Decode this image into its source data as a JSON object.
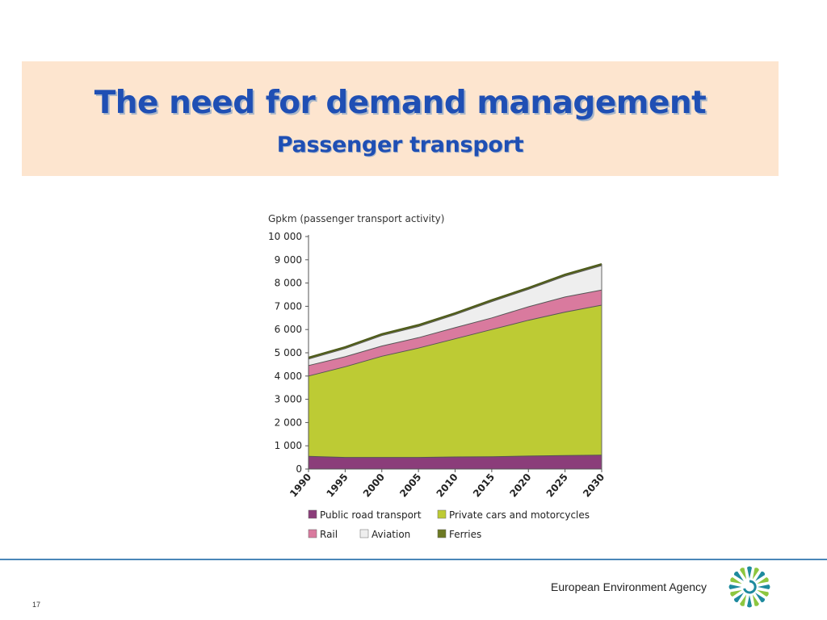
{
  "header": {
    "title": "The need for demand management",
    "subtitle": "Passenger transport"
  },
  "chart_data": {
    "type": "area",
    "stacked": true,
    "ylabel": "Gpkm (passenger transport activity)",
    "ylim": [
      0,
      10000
    ],
    "yticks": [
      "0",
      "1 000",
      "2 000",
      "3 000",
      "4 000",
      "5 000",
      "6 000",
      "7 000",
      "8 000",
      "9 000",
      "10 000"
    ],
    "x": [
      "1990",
      "1995",
      "2000",
      "2005",
      "2010",
      "2015",
      "2020",
      "2025",
      "2030"
    ],
    "series": [
      {
        "name": "Public road transport",
        "color": "#8b3d7a",
        "values": [
          550,
          500,
          500,
          500,
          520,
          530,
          560,
          580,
          600
        ]
      },
      {
        "name": "Private cars and motorcycles",
        "color": "#bdcb34",
        "values": [
          3450,
          3900,
          4350,
          4700,
          5080,
          5470,
          5840,
          6170,
          6450
        ]
      },
      {
        "name": "Rail",
        "color": "#d97a9e",
        "values": [
          450,
          430,
          440,
          450,
          480,
          500,
          580,
          650,
          650
        ]
      },
      {
        "name": "Aviation",
        "color": "#eeeeee",
        "values": [
          280,
          350,
          450,
          480,
          560,
          700,
          750,
          900,
          1050
        ]
      },
      {
        "name": "Ferries",
        "color": "#6d7a23",
        "values": [
          70,
          70,
          70,
          70,
          70,
          70,
          70,
          70,
          70
        ]
      }
    ],
    "legend_position": "bottom",
    "grid": false
  },
  "footer": {
    "page_number": "17",
    "agency_name": "European Environment Agency"
  },
  "logo": {
    "icon": "eea-logo-icon",
    "colors": [
      "#1e8a9e",
      "#8dc63f"
    ]
  }
}
